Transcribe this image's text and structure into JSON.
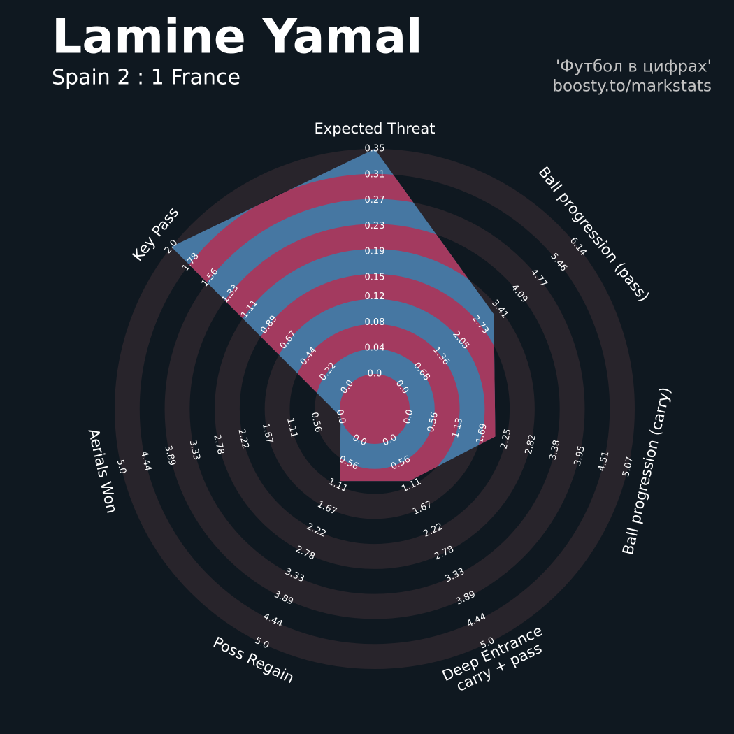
{
  "chart_data": {
    "type": "radar",
    "title": "Lamine Yamal",
    "subtitle": "Spain 2 : 1 France",
    "credits": [
      "'Футбол в цифрах'",
      "boosty.to/markstats"
    ],
    "categories": [
      "Expected Threat",
      "Ball progression (pass)",
      "Ball progression (carry)",
      "Deep Entrance\ncarry + pass",
      "Poss Regain",
      "Aerials Won",
      "Key Pass"
    ],
    "values": [
      0.35,
      3.2,
      2.0,
      1.0,
      1.0,
      0.0,
      2.0
    ],
    "axes": [
      {
        "lim": [
          0,
          0.35
        ],
        "ticks": [
          {
            "value": 0,
            "label": "0.0"
          },
          0.04,
          0.08,
          0.12,
          0.15,
          0.19,
          0.23,
          0.27,
          0.31,
          0.35
        ]
      },
      {
        "lim": [
          0,
          6.14
        ],
        "ticks": [
          {
            "value": 0,
            "label": "0.0"
          },
          0.68,
          1.36,
          2.05,
          2.73,
          3.41,
          4.09,
          4.77,
          5.46,
          6.14
        ]
      },
      {
        "lim": [
          0,
          5.07
        ],
        "ticks": [
          {
            "value": 0,
            "label": "0.0"
          },
          0.56,
          1.13,
          1.69,
          2.25,
          2.82,
          3.38,
          3.95,
          4.51,
          5.07
        ]
      },
      {
        "lim": [
          0,
          5
        ],
        "ticks": [
          {
            "value": 0,
            "label": "0.0"
          },
          0.56,
          1.11,
          1.67,
          2.22,
          2.78,
          3.33,
          3.89,
          4.44,
          {
            "value": 5,
            "label": "5.0"
          }
        ]
      },
      {
        "lim": [
          0,
          5
        ],
        "ticks": [
          {
            "value": 0,
            "label": "0.0"
          },
          0.56,
          1.11,
          1.67,
          2.22,
          2.78,
          3.33,
          3.89,
          4.44,
          {
            "value": 5,
            "label": "5.0"
          }
        ]
      },
      {
        "lim": [
          0,
          5
        ],
        "ticks": [
          {
            "value": 0,
            "label": "0.0"
          },
          0.56,
          1.11,
          1.67,
          2.22,
          2.78,
          3.33,
          3.89,
          4.44,
          {
            "value": 5,
            "label": "5.0"
          }
        ]
      },
      {
        "lim": [
          0,
          2
        ],
        "ticks": [
          {
            "value": 0,
            "label": "0.0"
          },
          0.22,
          0.44,
          0.67,
          0.89,
          1.11,
          1.33,
          1.56,
          1.78,
          {
            "value": 2,
            "label": "2.0"
          }
        ]
      }
    ],
    "ring_color": "#28242b",
    "fill_color": "#4677a2",
    "alt_fill_color": "#a33a5f"
  }
}
